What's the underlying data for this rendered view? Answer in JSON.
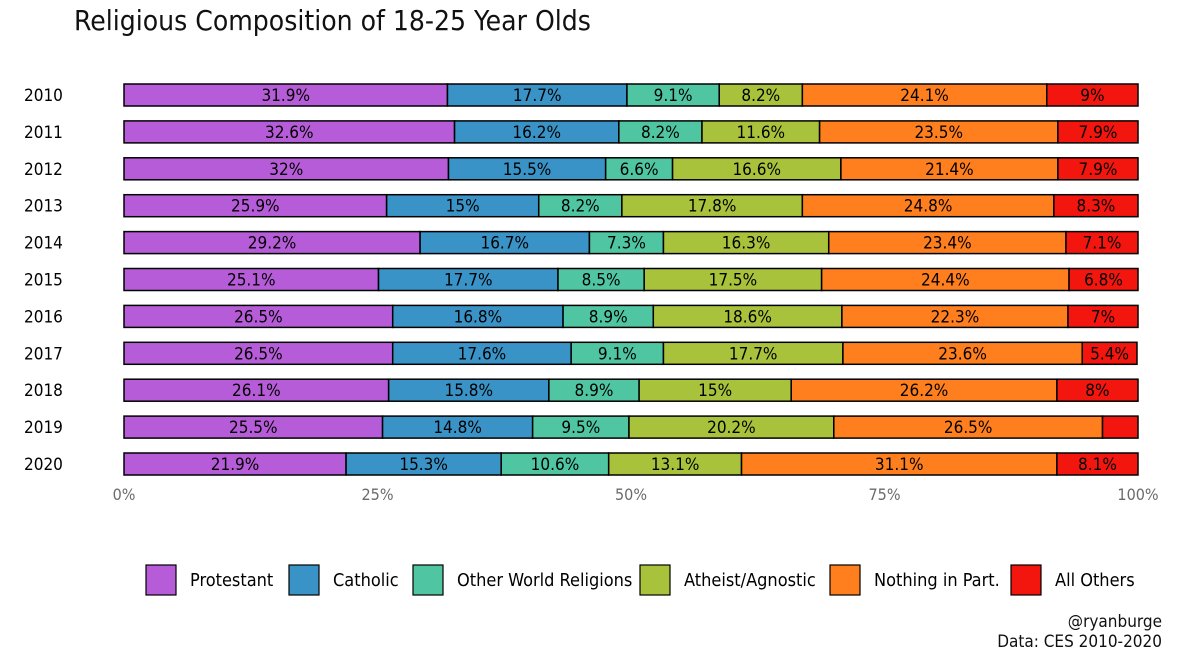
{
  "chart_data": {
    "type": "bar",
    "orientation": "horizontal",
    "stacked": true,
    "title": "Religious Composition of 18-25 Year Olds",
    "xlabel": "",
    "ylabel": "",
    "xlim": [
      0,
      100
    ],
    "x_ticks": [
      "0%",
      "25%",
      "50%",
      "75%",
      "100%"
    ],
    "categories": [
      "2010",
      "2011",
      "2012",
      "2013",
      "2014",
      "2015",
      "2016",
      "2017",
      "2018",
      "2019",
      "2020"
    ],
    "series": [
      {
        "name": "Protestant",
        "color": "#b65cd8",
        "values": [
          31.9,
          32.6,
          32,
          25.9,
          29.2,
          25.1,
          26.5,
          26.5,
          26.1,
          25.5,
          21.9
        ],
        "labels": [
          "31.9%",
          "32.6%",
          "32%",
          "25.9%",
          "29.2%",
          "25.1%",
          "26.5%",
          "26.5%",
          "26.1%",
          "25.5%",
          "21.9%"
        ]
      },
      {
        "name": "Catholic",
        "color": "#3a93c7",
        "values": [
          17.7,
          16.2,
          15.5,
          15,
          16.7,
          17.7,
          16.8,
          17.6,
          15.8,
          14.8,
          15.3
        ],
        "labels": [
          "17.7%",
          "16.2%",
          "15.5%",
          "15%",
          "16.7%",
          "17.7%",
          "16.8%",
          "17.6%",
          "15.8%",
          "14.8%",
          "15.3%"
        ]
      },
      {
        "name": "Other World Religions",
        "color": "#4fc6a1",
        "values": [
          9.1,
          8.2,
          6.6,
          8.2,
          7.3,
          8.5,
          8.9,
          9.1,
          8.9,
          9.5,
          10.6
        ],
        "labels": [
          "9.1%",
          "8.2%",
          "6.6%",
          "8.2%",
          "7.3%",
          "8.5%",
          "8.9%",
          "9.1%",
          "8.9%",
          "9.5%",
          "10.6%"
        ]
      },
      {
        "name": "Atheist/Agnostic",
        "color": "#a9c23c",
        "values": [
          8.2,
          11.6,
          16.6,
          17.8,
          16.3,
          17.5,
          18.6,
          17.7,
          15,
          20.2,
          13.1
        ],
        "labels": [
          "8.2%",
          "11.6%",
          "16.6%",
          "17.8%",
          "16.3%",
          "17.5%",
          "18.6%",
          "17.7%",
          "15%",
          "20.2%",
          "13.1%"
        ]
      },
      {
        "name": "Nothing in Part.",
        "color": "#ff7f1e",
        "values": [
          24.1,
          23.5,
          21.4,
          24.8,
          23.4,
          24.4,
          22.3,
          23.6,
          26.2,
          26.5,
          31.1
        ],
        "labels": [
          "24.1%",
          "23.5%",
          "21.4%",
          "24.8%",
          "23.4%",
          "24.4%",
          "22.3%",
          "23.6%",
          "26.2%",
          "26.5%",
          "31.1%"
        ]
      },
      {
        "name": "All Others",
        "color": "#f3160f",
        "values": [
          9,
          7.9,
          7.9,
          8.3,
          7.1,
          6.8,
          7,
          5.4,
          8,
          3.5,
          8.1
        ],
        "labels": [
          "9%",
          "7.9%",
          "7.9%",
          "8.3%",
          "7.1%",
          "6.8%",
          "7%",
          "5.4%",
          "8%",
          "",
          "8.1%"
        ]
      }
    ],
    "legend_position": "bottom",
    "grid": false
  },
  "credit": {
    "handle": "@ryanburge",
    "source": "Data: CES 2010-2020"
  }
}
